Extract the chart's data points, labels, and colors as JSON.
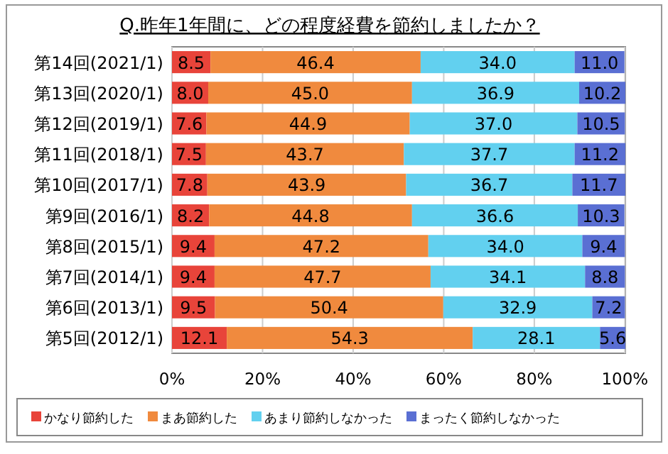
{
  "chart_data": {
    "type": "bar",
    "orientation": "horizontal",
    "stacked": true,
    "title": "Q.昨年1年間に、どの程度経費を節約しましたか？",
    "categories": [
      "第14回(2021/1)",
      "第13回(2020/1)",
      "第12回(2019/1)",
      "第11回(2018/1)",
      "第10回(2017/1)",
      "第9回(2016/1)",
      "第8回(2015/1)",
      "第7回(2014/1)",
      "第6回(2013/1)",
      "第5回(2012/1)"
    ],
    "series": [
      {
        "name": "かなり節約した",
        "color": "#e8443a",
        "values": [
          8.5,
          8.0,
          7.6,
          7.5,
          7.8,
          8.2,
          9.4,
          9.4,
          9.5,
          12.1
        ],
        "value_labels": [
          "8.5",
          "8.0",
          "7.6",
          "7.5",
          "7.8",
          "8.2",
          "9.4",
          "9.4",
          "9.5",
          "12.1"
        ]
      },
      {
        "name": "まあ節約した",
        "color": "#f08a3e",
        "values": [
          46.4,
          45.0,
          44.9,
          43.7,
          43.9,
          44.8,
          47.2,
          47.7,
          50.4,
          54.3
        ],
        "value_labels": [
          "46.4",
          "45.0",
          "44.9",
          "43.7",
          "43.9",
          "44.8",
          "47.2",
          "47.7",
          "50.4",
          "54.3"
        ]
      },
      {
        "name": "あまり節約しなかった",
        "color": "#62d0ef",
        "values": [
          34.0,
          36.9,
          37.0,
          37.7,
          36.7,
          36.6,
          34.0,
          34.1,
          32.9,
          28.1
        ],
        "value_labels": [
          "34.0",
          "36.9",
          "37.0",
          "37.7",
          "36.7",
          "36.6",
          "34.0",
          "34.1",
          "32.9",
          "28.1"
        ]
      },
      {
        "name": "まったく節約しなかった",
        "color": "#5a6fd3",
        "values": [
          11.0,
          10.2,
          10.5,
          11.2,
          11.7,
          10.3,
          9.4,
          8.8,
          7.2,
          5.6
        ],
        "value_labels": [
          "11.0",
          "10.2",
          "10.5",
          "11.2",
          "11.7",
          "10.3",
          "9.4",
          "8.8",
          "7.2",
          "5.6"
        ]
      }
    ],
    "xlim": [
      0,
      100.1
    ],
    "xticks": [
      {
        "value": 0,
        "label": "0%"
      },
      {
        "value": 20,
        "label": "20%"
      },
      {
        "value": 40,
        "label": "40%"
      },
      {
        "value": 60,
        "label": "60%"
      },
      {
        "value": 80,
        "label": "80%"
      },
      {
        "value": 100,
        "label": "100%"
      }
    ],
    "grid": "x",
    "legend": "bottom"
  }
}
